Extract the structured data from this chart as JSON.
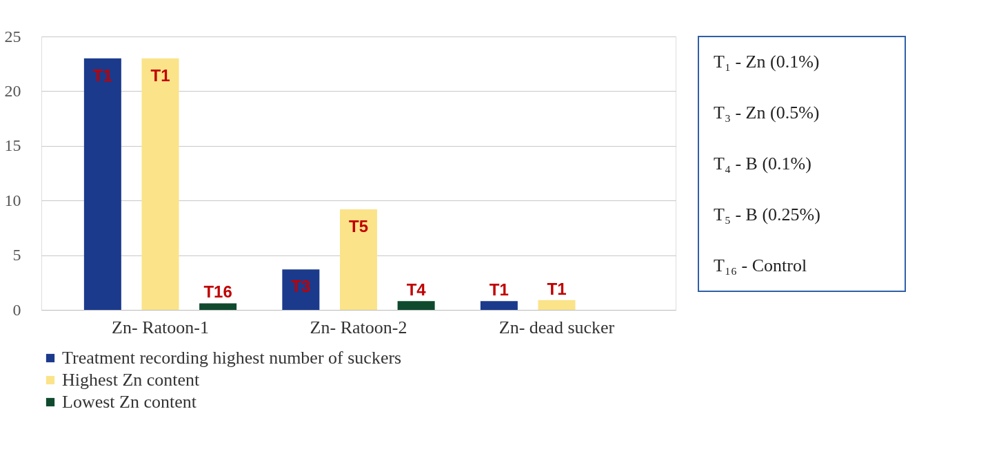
{
  "chart_data": {
    "type": "bar",
    "categories": [
      "Zn- Ratoon-1",
      "Zn- Ratoon-2",
      "Zn- dead sucker"
    ],
    "series": [
      {
        "name": "Treatment recording highest number of suckers",
        "color": "#1b3a8c",
        "values": [
          23,
          3.7,
          0.8
        ],
        "value_labels": [
          "T1",
          "T3",
          "T1"
        ]
      },
      {
        "name": "Highest Zn content",
        "color": "#fbe38a",
        "values": [
          23,
          9.2,
          0.9
        ],
        "value_labels": [
          "T1",
          "T5",
          "T1"
        ]
      },
      {
        "name": "Lowest Zn content",
        "color": "#0f4a2e",
        "values": [
          0.6,
          0.8,
          null
        ],
        "value_labels": [
          "T16",
          "T4",
          null
        ]
      }
    ],
    "ylim": [
      0,
      25
    ],
    "yticks": [
      0,
      5,
      10,
      15,
      20,
      25
    ],
    "grid": "y",
    "legend": "bottom",
    "annotations": [
      "T₁ - Zn (0.1%)",
      "T₃ - Zn (0.5%)",
      "T₄ - B (0.1%)",
      "T₅ - B (0.25%)",
      "T₁₆ - Control"
    ]
  }
}
